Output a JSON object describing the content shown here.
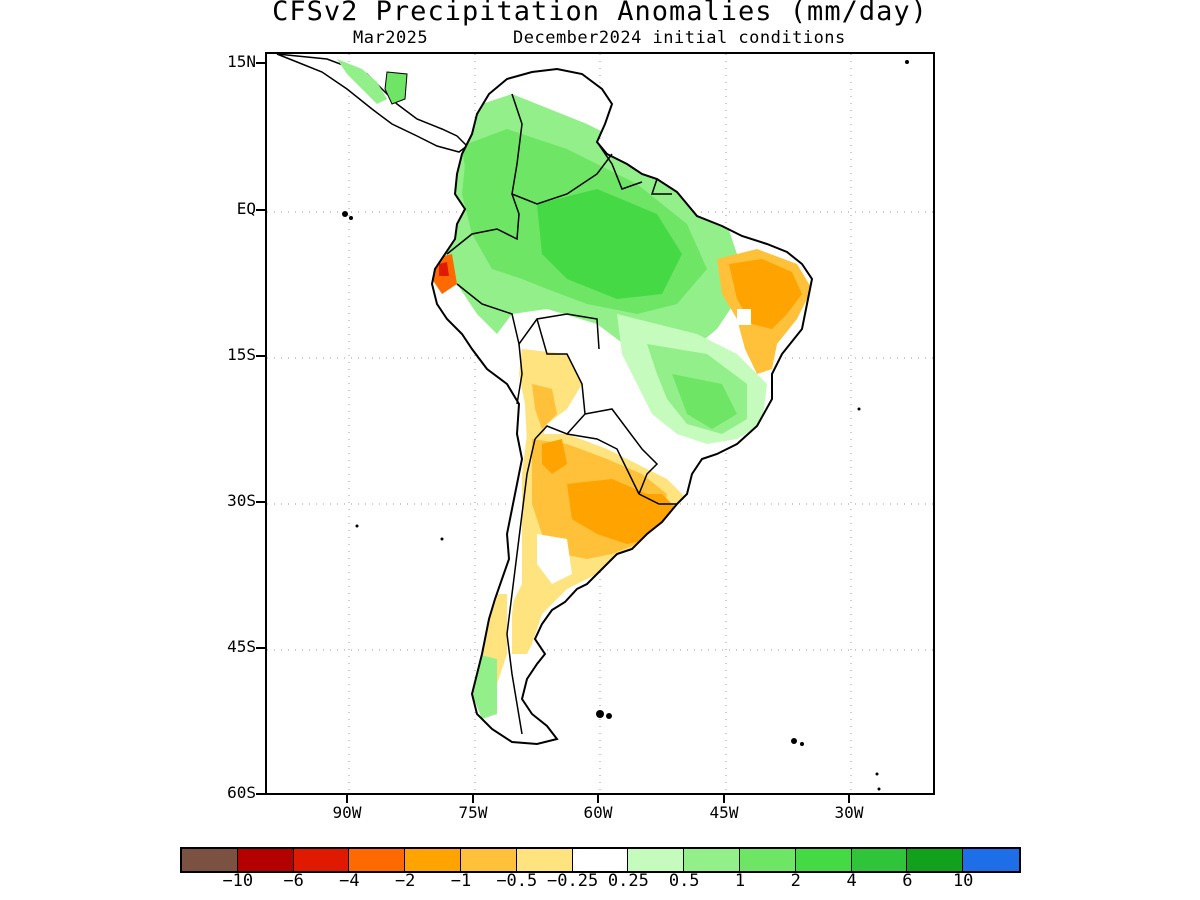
{
  "title": "CFSv2 Precipitation Anomalies (mm/day)",
  "subtitle_left": "Mar2025",
  "subtitle_right": "December2024 initial conditions",
  "map": {
    "region": "South America",
    "lat_range": [
      -60,
      15
    ],
    "lon_range": [
      -100,
      -20
    ],
    "grid_lines": "dotted",
    "lat_labels": [
      "15N",
      "EQ",
      "15S",
      "30S",
      "45S",
      "60S"
    ],
    "lon_labels": [
      "90W",
      "75W",
      "60W",
      "45W",
      "30W"
    ],
    "land_outline": "#000000"
  },
  "legend": {
    "colors": [
      "#7b5142",
      "#b30000",
      "#e01a00",
      "#ff6a00",
      "#ffa300",
      "#ffc13a",
      "#ffe37e",
      "#ffffff",
      "#c6fbbe",
      "#93ef8a",
      "#6fe566",
      "#45d946",
      "#2fc43a",
      "#11a11c",
      "#1e6ee8"
    ],
    "labels": [
      "−10",
      "−6",
      "−4",
      "−2",
      "−1",
      "−0.5",
      "−0.25",
      "0.25",
      "0.5",
      "1",
      "2",
      "4",
      "6",
      "10"
    ]
  }
}
